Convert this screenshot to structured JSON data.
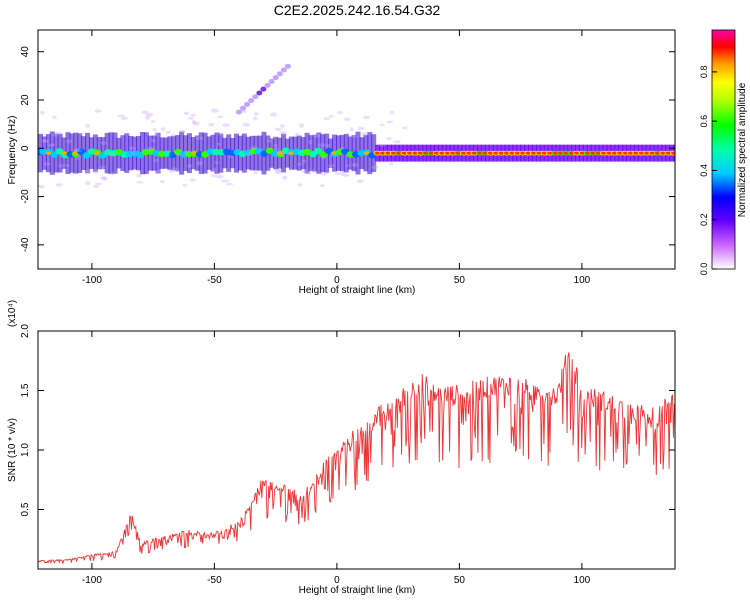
{
  "title": "C2E2.2025.242.16.54.G32",
  "colors": {
    "series": "#ee3333",
    "axis": "#000000"
  },
  "chart_data": [
    {
      "type": "heatmap",
      "xlabel": "Height of straight line (km)",
      "ylabel": "Frequency (Hz)",
      "xlim": [
        -122,
        138
      ],
      "ylim": [
        -50,
        49
      ],
      "xticks": [
        -100,
        -50,
        0,
        50,
        100
      ],
      "xtick_labels": [
        "-100",
        "-50",
        "0",
        "50",
        "100"
      ],
      "yticks": [
        -40,
        -20,
        0,
        20,
        40
      ],
      "ytick_labels": [
        "-40",
        "-20",
        "0",
        "20",
        "40"
      ],
      "colorbar": {
        "label": "Normalized spectral amplitude",
        "range": [
          0,
          0.97
        ],
        "ticks": [
          0.0,
          0.2,
          0.4,
          0.6,
          0.8
        ],
        "tick_labels": [
          "0.0",
          "0.2",
          "0.4",
          "0.6",
          "0.8"
        ],
        "colormap": "rainbow (white-violet-blue-cyan-green-yellow-orange-red-magenta)"
      },
      "features": [
        {
          "name": "main band",
          "x": [
            -122,
            138
          ],
          "freq_center": -2,
          "note": "peak amplitude ~0.9 for heights above ~15 km"
        },
        {
          "name": "weak harmonic streak",
          "x": [
            -40,
            -20
          ],
          "freq_range": [
            15,
            34
          ]
        }
      ]
    },
    {
      "type": "line",
      "xlabel": "Height of straight line (km)",
      "ylabel": "SNR (10 * v/v)",
      "ylabel_multiplier": "(x10⁴)",
      "xlim": [
        -122,
        138
      ],
      "ylim": [
        0,
        2.0
      ],
      "xticks": [
        -100,
        -50,
        0,
        50,
        100
      ],
      "xtick_labels": [
        "-100",
        "-50",
        "0",
        "50",
        "100"
      ],
      "yticks": [
        0.5,
        1.0,
        1.5,
        2.0
      ],
      "ytick_labels": [
        "0.5",
        "1.0",
        "1.5",
        "2.0"
      ],
      "series": [
        {
          "x": [
            -122,
            -110,
            -100,
            -90,
            -84,
            -80,
            -70,
            -60,
            -50,
            -40,
            -35,
            -30,
            -25,
            -20,
            -15,
            -10,
            -5,
            0,
            5,
            10,
            15,
            20,
            25,
            30,
            35,
            40,
            50,
            60,
            70,
            80,
            90,
            95,
            100,
            110,
            120,
            130,
            138
          ],
          "y": [
            0.07,
            0.08,
            0.12,
            0.15,
            0.47,
            0.22,
            0.28,
            0.33,
            0.3,
            0.4,
            0.55,
            0.8,
            0.68,
            0.72,
            0.6,
            0.75,
            0.9,
            1.0,
            1.12,
            1.2,
            1.3,
            1.4,
            1.48,
            1.55,
            1.62,
            1.52,
            1.52,
            1.58,
            1.62,
            1.55,
            1.52,
            1.9,
            1.52,
            1.46,
            1.38,
            1.33,
            1.5
          ]
        }
      ]
    }
  ]
}
